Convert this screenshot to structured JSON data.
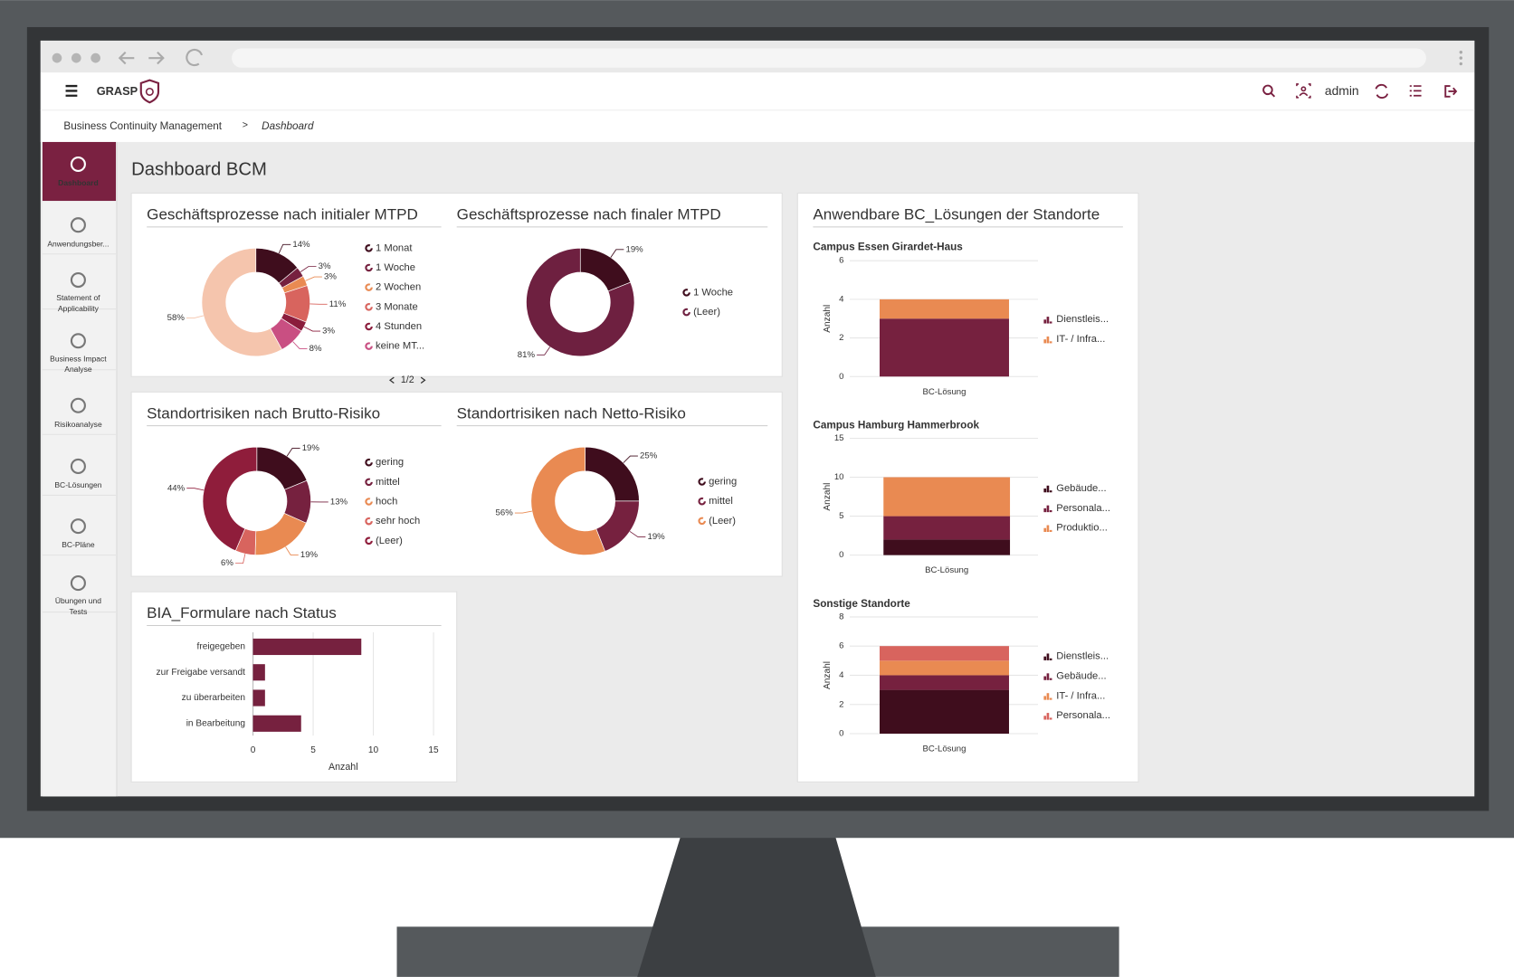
{
  "header": {
    "logo": "GRASP",
    "user": "admin"
  },
  "breadcrumb": {
    "items": [
      "Business Continuity Management",
      "Dashboard"
    ],
    "separator": ">"
  },
  "sidebar": {
    "items": [
      [
        "Dashboard"
      ],
      [
        "Anwendungsber..."
      ],
      [
        "Statement of",
        "Applicability"
      ],
      [
        "Business Impact",
        "Analyse"
      ],
      [
        "Risikoanalyse"
      ],
      [
        "BC-Lösungen"
      ],
      [
        "BC-Pläne"
      ],
      [
        "Übungen und",
        "Tests"
      ]
    ]
  },
  "page_title": "Dashboard BCM",
  "location_panel": {
    "title": "Anwendbare BC_Lösungen der Standorte"
  },
  "chart_data": [
    {
      "type": "donut",
      "title": "Geschäftsprozesse nach initialer MTPD",
      "categories": [
        "1 Monat",
        "1 Woche",
        "2 Wochen",
        "3 Monate",
        "4 Stunden",
        "keine MT...",
        null
      ],
      "values": [
        14,
        3,
        3,
        11,
        3,
        8,
        58
      ],
      "value_labels": [
        "14%",
        "3%",
        "3%",
        "11%",
        "3%",
        "8%",
        "58%"
      ],
      "colors": [
        "#3f0d1d",
        "#76213f",
        "#e98a52",
        "#d8645e",
        "#8b1c3c",
        "#c94f82",
        "#f5c5ad"
      ],
      "legend_page": "1/2"
    },
    {
      "type": "donut",
      "title": "Geschäftsprozesse nach finaler MTPD",
      "categories": [
        "1 Woche",
        "(Leer)"
      ],
      "values": [
        19,
        81
      ],
      "value_labels": [
        "19%",
        "81%"
      ],
      "colors": [
        "#3f0d1d",
        "#6e2040"
      ]
    },
    {
      "type": "donut",
      "title": "Standortrisiken nach Brutto-Risiko",
      "categories": [
        "gering",
        "mittel",
        "hoch",
        "sehr hoch",
        "(Leer)"
      ],
      "values": [
        19,
        13,
        19,
        6,
        44
      ],
      "value_labels": [
        "19%",
        "13%",
        "19%",
        "6%",
        "44%"
      ],
      "colors": [
        "#3f0d1d",
        "#76213f",
        "#e98a52",
        "#d8645e",
        "#8f1d3b"
      ]
    },
    {
      "type": "donut",
      "title": "Standortrisiken nach Netto-Risiko",
      "categories": [
        "gering",
        "mittel",
        "(Leer)"
      ],
      "values": [
        25,
        19,
        56
      ],
      "value_labels": [
        "25%",
        "19%",
        "56%"
      ],
      "colors": [
        "#3f0d1d",
        "#76213f",
        "#e98a52"
      ]
    },
    {
      "type": "hbar",
      "title": "BIA_Formulare nach Status",
      "categories": [
        "freigegeben",
        "zur Freigabe versandt",
        "zu überarbeiten",
        "in Bearbeitung"
      ],
      "values": [
        9,
        1,
        1,
        4
      ],
      "color": "#76213f",
      "xlim": [
        0,
        15
      ],
      "xticks": [
        0,
        5,
        10,
        15
      ],
      "xlabel": "Anzahl",
      "grid": true
    },
    {
      "type": "stacked_bar",
      "title": "Campus Essen Girardet-Haus",
      "categories": [
        "BC-Lösung"
      ],
      "series": [
        {
          "name": "Dienstleis...",
          "color": "#76213f",
          "values": [
            3
          ]
        },
        {
          "name": "IT- / Infra...",
          "color": "#e98a52",
          "values": [
            1
          ]
        }
      ],
      "ylim": [
        0,
        6
      ],
      "yticks": [
        0,
        2,
        4,
        6
      ],
      "ylabel": "Anzahl",
      "grid": true,
      "legend": "right"
    },
    {
      "type": "stacked_bar",
      "title": "Campus Hamburg Hammerbrook",
      "categories": [
        "BC-Lösung"
      ],
      "series": [
        {
          "name": "Gebäude...",
          "color": "#3f0d1d",
          "values": [
            2
          ]
        },
        {
          "name": "Personala...",
          "color": "#76213f",
          "values": [
            3
          ]
        },
        {
          "name": "Produktio...",
          "color": "#e98a52",
          "values": [
            5
          ]
        }
      ],
      "ylim": [
        0,
        15
      ],
      "yticks": [
        0,
        5,
        10,
        15
      ],
      "ylabel": "Anzahl",
      "grid": true,
      "legend": "right"
    },
    {
      "type": "stacked_bar",
      "title": "Sonstige Standorte",
      "categories": [
        "BC-Lösung"
      ],
      "series": [
        {
          "name": "Dienstleis...",
          "color": "#3f0d1d",
          "values": [
            3
          ]
        },
        {
          "name": "Gebäude...",
          "color": "#76213f",
          "values": [
            1
          ]
        },
        {
          "name": "IT- / Infra...",
          "color": "#e98a52",
          "values": [
            1
          ]
        },
        {
          "name": "Personala...",
          "color": "#d8645e",
          "values": [
            1
          ]
        }
      ],
      "ylim": [
        0,
        8
      ],
      "yticks": [
        0,
        2,
        4,
        6,
        8
      ],
      "ylabel": "Anzahl",
      "grid": true,
      "legend": "right"
    }
  ]
}
